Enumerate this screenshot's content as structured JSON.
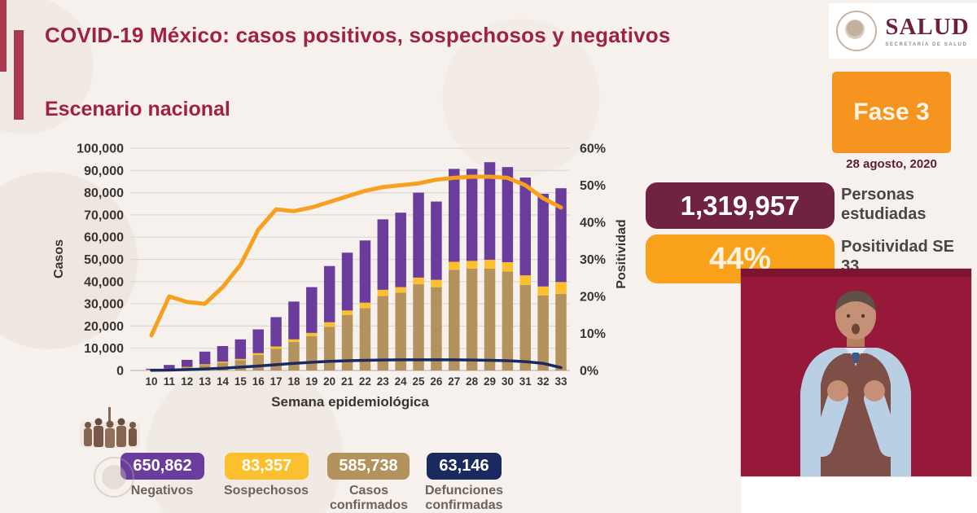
{
  "header": {
    "title": "COVID-19 México: casos positivos, sospechosos y negativos",
    "subtitle": "Escenario nacional"
  },
  "logo": {
    "name": "SALUD",
    "subname": "SECRETARÍA DE SALUD"
  },
  "phase": {
    "label": "Fase 3"
  },
  "date": "28 agosto, 2020",
  "stats": [
    {
      "value": "1,319,957",
      "label": "Personas estudiadas",
      "color": "#6f2242"
    },
    {
      "value": "44%",
      "label": "Positividad SE 33",
      "color": "#f9a11b"
    }
  ],
  "legend": [
    {
      "value": "650,862",
      "label": "Negativos",
      "color": "#6a3d9c"
    },
    {
      "value": "83,357",
      "label": "Sospechosos",
      "color": "#fcc02e"
    },
    {
      "value": "585,738",
      "label": "Casos confirmados",
      "color": "#b3925d"
    },
    {
      "value": "63,146",
      "label": "Defunciones confirmadas",
      "color": "#1b2a5e"
    }
  ],
  "colors": {
    "accent_maroon": "#9f2241",
    "phase_orange": "#f5941f",
    "video_background": "#96193a",
    "gridline": "#ddd8d3"
  },
  "chart_data": {
    "type": "bar",
    "subtype": "stacked-bars-with-lines",
    "title": "Escenario nacional",
    "xlabel": "Semana epidemiológica",
    "ylabel": "Casos",
    "y2label": "Positividad",
    "ylim": [
      0,
      100000
    ],
    "y2lim": [
      0,
      60
    ],
    "grid": "horizontal",
    "y_ticks": [
      "0",
      "10,000",
      "20,000",
      "30,000",
      "40,000",
      "50,000",
      "60,000",
      "70,000",
      "80,000",
      "90,000",
      "100,000"
    ],
    "y2_ticks": [
      "0%",
      "10%",
      "20%",
      "30%",
      "40%",
      "50%",
      "60%"
    ],
    "weeks": [
      "10",
      "11",
      "12",
      "13",
      "14",
      "15",
      "16",
      "17",
      "18",
      "19",
      "20",
      "21",
      "22",
      "23",
      "24",
      "25",
      "26",
      "27",
      "28",
      "29",
      "30",
      "31",
      "32",
      "33"
    ],
    "series": [
      {
        "name": "Casos confirmados",
        "type": "bar",
        "color": "#b3925d",
        "values": [
          300,
          600,
          1300,
          2400,
          3500,
          4600,
          7000,
          9800,
          12800,
          15400,
          19700,
          25000,
          28000,
          33500,
          35000,
          38800,
          37500,
          45300,
          45800,
          45800,
          44500,
          38500,
          33800,
          34500
        ]
      },
      {
        "name": "Sospechosos",
        "type": "bar",
        "color": "#fcc02e",
        "values": [
          100,
          200,
          300,
          400,
          500,
          600,
          800,
          1000,
          1200,
          1500,
          2000,
          2000,
          2500,
          2800,
          2500,
          3000,
          3300,
          3600,
          3500,
          4000,
          4200,
          4300,
          4000,
          5300
        ]
      },
      {
        "name": "Negativos",
        "type": "bar",
        "color": "#6a3d9c",
        "values": [
          400,
          1700,
          3200,
          5700,
          7000,
          8800,
          10700,
          13200,
          17000,
          20600,
          25300,
          26000,
          28000,
          31700,
          33500,
          38200,
          35200,
          41800,
          41400,
          43900,
          42800,
          44000,
          41700,
          42200
        ]
      },
      {
        "name": "Defunciones confirmadas",
        "type": "line",
        "axis": "left",
        "color": "#1b2a5e",
        "values": [
          100,
          200,
          400,
          700,
          1000,
          1500,
          2000,
          2600,
          3200,
          3700,
          4100,
          4400,
          4600,
          4700,
          4800,
          4800,
          4800,
          4800,
          4700,
          4600,
          4400,
          4000,
          3200,
          1300
        ]
      },
      {
        "name": "Positividad",
        "type": "line",
        "axis": "right",
        "color": "#f7a01e",
        "values": [
          9.5,
          20,
          18.5,
          18,
          22.5,
          28.5,
          38,
          43.5,
          43,
          44,
          45.5,
          47,
          48.5,
          49.5,
          50,
          50.5,
          51.5,
          52,
          52.3,
          52.3,
          52,
          50,
          46.5,
          44
        ]
      }
    ]
  }
}
